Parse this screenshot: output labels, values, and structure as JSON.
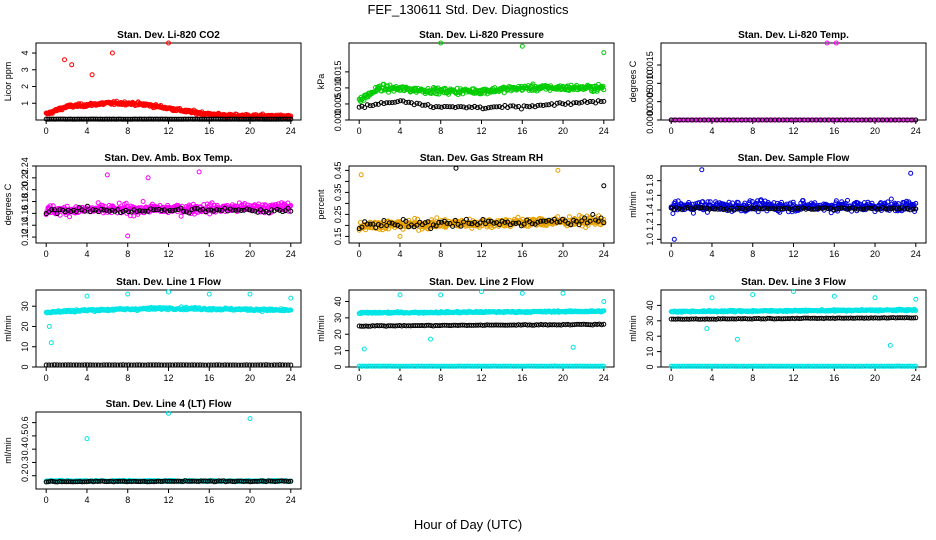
{
  "figure": {
    "title": "FEF_130611  Std. Dev. Diagnostics",
    "xlabel": "Hour of Day (UTC)"
  },
  "chart_data": [
    {
      "type": "scatter",
      "title": "Stan. Dev. Li-820 CO2",
      "ylabel": "Licor ppm",
      "xlim": [
        -1,
        25
      ],
      "ylim": [
        0,
        4.6
      ],
      "xticks": [
        0,
        4,
        8,
        12,
        16,
        20,
        24
      ],
      "yticks": [
        1,
        2,
        3,
        4
      ],
      "ytick_labels": [
        "1",
        "2",
        "3",
        "4"
      ],
      "series": [
        {
          "color": "#ff0000",
          "profile": [
            [
              0,
              0.35
            ],
            [
              2,
              0.8
            ],
            [
              4,
              0.9
            ],
            [
              6,
              1.0
            ],
            [
              8,
              1.0
            ],
            [
              10,
              0.9
            ],
            [
              12,
              0.7
            ],
            [
              14,
              0.5
            ],
            [
              16,
              0.35
            ],
            [
              18,
              0.25
            ],
            [
              20,
              0.25
            ],
            [
              24,
              0.2
            ]
          ],
          "spread": 0.4,
          "outliers": [
            [
              12,
              4.6
            ],
            [
              6.5,
              4.0
            ],
            [
              2.5,
              3.3
            ],
            [
              1.8,
              3.6
            ],
            [
              4.5,
              2.7
            ]
          ],
          "n": 400
        },
        {
          "color": "#000000",
          "profile": [
            [
              0,
              0.05
            ],
            [
              24,
              0.05
            ]
          ],
          "spread": 0.02,
          "n": 140
        }
      ]
    },
    {
      "type": "scatter",
      "title": "Stan. Dev. Li-820 Pressure",
      "ylabel": "kPa",
      "xlim": [
        -1,
        25
      ],
      "ylim": [
        0,
        0.024
      ],
      "xticks": [
        0,
        4,
        8,
        12,
        16,
        20,
        24
      ],
      "yticks": [
        0,
        0.005,
        0.01,
        0.015
      ],
      "ytick_labels": [
        "0.000",
        "0.005",
        "0.010",
        "0.015"
      ],
      "series": [
        {
          "color": "#00cc00",
          "profile": [
            [
              0,
              0.006
            ],
            [
              2,
              0.01
            ],
            [
              8,
              0.009
            ],
            [
              12,
              0.009
            ],
            [
              16,
              0.01
            ],
            [
              24,
              0.01
            ]
          ],
          "spread": 0.004,
          "outliers": [
            [
              8,
              0.024
            ],
            [
              16,
              0.023
            ],
            [
              24,
              0.021
            ]
          ],
          "n": 360
        },
        {
          "color": "#000000",
          "profile": [
            [
              0,
              0.004
            ],
            [
              4,
              0.006
            ],
            [
              8,
              0.004
            ],
            [
              16,
              0.004
            ],
            [
              24,
              0.006
            ]
          ],
          "spread": 0.002,
          "n": 90
        }
      ]
    },
    {
      "type": "scatter",
      "title": "Stan. Dev. Li-820 Temp.",
      "ylabel": "degrees C",
      "xlim": [
        -1,
        25
      ],
      "ylim": [
        0,
        0.0021
      ],
      "xticks": [
        0,
        4,
        8,
        12,
        16,
        20,
        24
      ],
      "yticks": [
        0,
        0.0005,
        0.001,
        0.0015
      ],
      "ytick_labels": [
        "0.0000",
        "0.0005",
        "0.0010",
        "0.0015"
      ],
      "series": [
        {
          "color": "#ff00ff",
          "profile": [
            [
              0,
              0
            ],
            [
              24,
              0
            ]
          ],
          "spread": 0,
          "outliers": [
            [
              15.3,
              0.0021
            ],
            [
              16.2,
              0.0021
            ]
          ],
          "n": 100
        },
        {
          "color": "#000000",
          "profile": [
            [
              0,
              0
            ],
            [
              24,
              0
            ]
          ],
          "spread": 0,
          "n": 60
        }
      ]
    },
    {
      "type": "scatter",
      "title": "Stan. Dev. Amb. Box Temp.",
      "ylabel": "degrees C",
      "xlim": [
        -1,
        25
      ],
      "ylim": [
        0.11,
        0.24
      ],
      "xticks": [
        0,
        4,
        8,
        12,
        16,
        20,
        24
      ],
      "yticks": [
        0.12,
        0.14,
        0.16,
        0.18,
        0.2,
        0.22,
        0.24
      ],
      "ytick_labels": [
        "0.12",
        "0.14",
        "0.16",
        "0.18",
        "0.20",
        "0.22",
        "0.24"
      ],
      "series": [
        {
          "color": "#ff00ff",
          "profile": [
            [
              0,
              0.165
            ],
            [
              24,
              0.17
            ]
          ],
          "spread": 0.035,
          "outliers": [
            [
              15,
              0.23
            ],
            [
              6,
              0.225
            ],
            [
              10,
              0.22
            ],
            [
              8,
              0.122
            ]
          ],
          "n": 420
        },
        {
          "color": "#000000",
          "profile": [
            [
              0,
              0.165
            ],
            [
              24,
              0.165
            ]
          ],
          "spread": 0.02,
          "n": 90
        }
      ]
    },
    {
      "type": "scatter",
      "title": "Stan. Dev. Gas Stream RH",
      "ylabel": "percent",
      "xlim": [
        -1,
        25
      ],
      "ylim": [
        0.12,
        0.47
      ],
      "xticks": [
        0,
        4,
        8,
        12,
        16,
        20,
        24
      ],
      "yticks": [
        0.15,
        0.2,
        0.25,
        0.3,
        0.35,
        0.4,
        0.45
      ],
      "ytick_labels": [
        "0.15",
        "",
        "0.25",
        "",
        "0.35",
        "",
        "0.45"
      ],
      "series": [
        {
          "color": "#e6a000",
          "profile": [
            [
              0,
              0.2
            ],
            [
              24,
              0.22
            ]
          ],
          "spread": 0.09,
          "outliers": [
            [
              0.2,
              0.43
            ],
            [
              19.5,
              0.45
            ],
            [
              4,
              0.15
            ]
          ],
          "n": 420
        },
        {
          "color": "#000000",
          "profile": [
            [
              0,
              0.2
            ],
            [
              24,
              0.22
            ]
          ],
          "spread": 0.08,
          "outliers": [
            [
              9.5,
              0.46
            ],
            [
              24,
              0.38
            ]
          ],
          "n": 90
        }
      ]
    },
    {
      "type": "scatter",
      "title": "Stan. Dev. Sample Flow",
      "ylabel": "ml/min",
      "xlim": [
        -1,
        25
      ],
      "ylim": [
        0.95,
        2.0
      ],
      "xticks": [
        0,
        4,
        8,
        12,
        16,
        20,
        24
      ],
      "yticks": [
        1.0,
        1.2,
        1.4,
        1.6,
        1.8
      ],
      "ytick_labels": [
        "1.0",
        "1.2",
        "1.4",
        "1.6",
        "1.8"
      ],
      "series": [
        {
          "color": "#0000dd",
          "profile": [
            [
              0,
              1.45
            ],
            [
              24,
              1.45
            ]
          ],
          "spread": 0.3,
          "outliers": [
            [
              3,
              1.95
            ],
            [
              23.5,
              1.9
            ],
            [
              0.3,
              1.0
            ]
          ],
          "n": 420
        },
        {
          "color": "#000000",
          "profile": [
            [
              0,
              1.42
            ],
            [
              24,
              1.42
            ]
          ],
          "spread": 0.07,
          "n": 90
        }
      ]
    },
    {
      "type": "scatter",
      "title": "Stan. Dev. Line 1 Flow",
      "ylabel": "ml/min",
      "xlim": [
        -1,
        25
      ],
      "ylim": [
        0,
        38
      ],
      "xticks": [
        0,
        4,
        8,
        12,
        16,
        20,
        24
      ],
      "yticks": [
        0,
        10,
        20,
        30
      ],
      "ytick_labels": [
        "0",
        "10",
        "20",
        "30"
      ],
      "series": [
        {
          "color": "#00e5e5",
          "profile": [
            [
              0,
              27
            ],
            [
              4,
              28
            ],
            [
              12,
              29
            ],
            [
              24,
              28
            ]
          ],
          "spread": 2.5,
          "outliers": [
            [
              4,
              35
            ],
            [
              8,
              36
            ],
            [
              12,
              37
            ],
            [
              16,
              36
            ],
            [
              20,
              36
            ],
            [
              24,
              34
            ],
            [
              0.5,
              12
            ],
            [
              0.3,
              20
            ]
          ],
          "n": 300
        },
        {
          "color": "#000000",
          "profile": [
            [
              0,
              1
            ],
            [
              24,
              1
            ]
          ],
          "spread": 0.3,
          "n": 90
        }
      ]
    },
    {
      "type": "scatter",
      "title": "Stan. Dev. Line 2 Flow",
      "ylabel": "ml/min",
      "xlim": [
        -1,
        25
      ],
      "ylim": [
        0,
        47
      ],
      "xticks": [
        0,
        4,
        8,
        12,
        16,
        20,
        24
      ],
      "yticks": [
        0,
        10,
        20,
        30,
        40
      ],
      "ytick_labels": [
        "0",
        "10",
        "20",
        "30",
        "40"
      ],
      "series": [
        {
          "color": "#00e5e5",
          "profile": [
            [
              0,
              33
            ],
            [
              24,
              34
            ]
          ],
          "spread": 2,
          "outliers": [
            [
              4,
              44
            ],
            [
              8,
              44
            ],
            [
              12,
              46
            ],
            [
              16,
              45
            ],
            [
              20,
              45
            ],
            [
              24,
              40
            ],
            [
              0.5,
              11
            ],
            [
              21,
              12
            ],
            [
              7,
              17
            ]
          ],
          "n": 300
        },
        {
          "color": "#00e5e5",
          "profile": [
            [
              0,
              0.5
            ],
            [
              24,
              0.5
            ]
          ],
          "spread": 0.3,
          "n": 150
        },
        {
          "color": "#000000",
          "profile": [
            [
              0,
              25
            ],
            [
              24,
              26
            ]
          ],
          "spread": 1,
          "n": 110
        }
      ]
    },
    {
      "type": "scatter",
      "title": "Stan. Dev. Line 3 Flow",
      "ylabel": "ml/min",
      "xlim": [
        -1,
        25
      ],
      "ylim": [
        0,
        50
      ],
      "xticks": [
        0,
        4,
        8,
        12,
        16,
        20,
        24
      ],
      "yticks": [
        0,
        10,
        20,
        30,
        40
      ],
      "ytick_labels": [
        "0",
        "10",
        "20",
        "30",
        "40"
      ],
      "series": [
        {
          "color": "#00e5e5",
          "profile": [
            [
              0,
              36
            ],
            [
              24,
              37
            ]
          ],
          "spread": 2,
          "outliers": [
            [
              4,
              45
            ],
            [
              8,
              47
            ],
            [
              12,
              49
            ],
            [
              16,
              46
            ],
            [
              20,
              45
            ],
            [
              24,
              44
            ],
            [
              6.5,
              18
            ],
            [
              21.5,
              14
            ],
            [
              3.5,
              25
            ]
          ],
          "n": 300
        },
        {
          "color": "#00e5e5",
          "profile": [
            [
              0,
              0.5
            ],
            [
              24,
              0.5
            ]
          ],
          "spread": 0.3,
          "n": 150
        },
        {
          "color": "#000000",
          "profile": [
            [
              0,
              31
            ],
            [
              24,
              32
            ]
          ],
          "spread": 1,
          "n": 110
        }
      ]
    },
    {
      "type": "scatter",
      "title": "Stan. Dev. Line 4 (LT) Flow",
      "ylabel": "ml/min",
      "xlim": [
        -1,
        25
      ],
      "ylim": [
        0.1,
        0.68
      ],
      "xticks": [
        0,
        4,
        8,
        12,
        16,
        20,
        24
      ],
      "yticks": [
        0.2,
        0.3,
        0.4,
        0.5,
        0.6
      ],
      "ytick_labels": [
        "0.2",
        "0.3",
        "0.4",
        "0.5",
        "0.6"
      ],
      "series": [
        {
          "color": "#00e5e5",
          "profile": [
            [
              0,
              0.16
            ],
            [
              24,
              0.16
            ]
          ],
          "spread": 0.02,
          "outliers": [
            [
              12,
              0.67
            ],
            [
              20,
              0.63
            ],
            [
              4,
              0.48
            ]
          ],
          "n": 300
        },
        {
          "color": "#000000",
          "profile": [
            [
              0,
              0.155
            ],
            [
              24,
              0.16
            ]
          ],
          "spread": 0.015,
          "n": 110
        }
      ]
    }
  ]
}
